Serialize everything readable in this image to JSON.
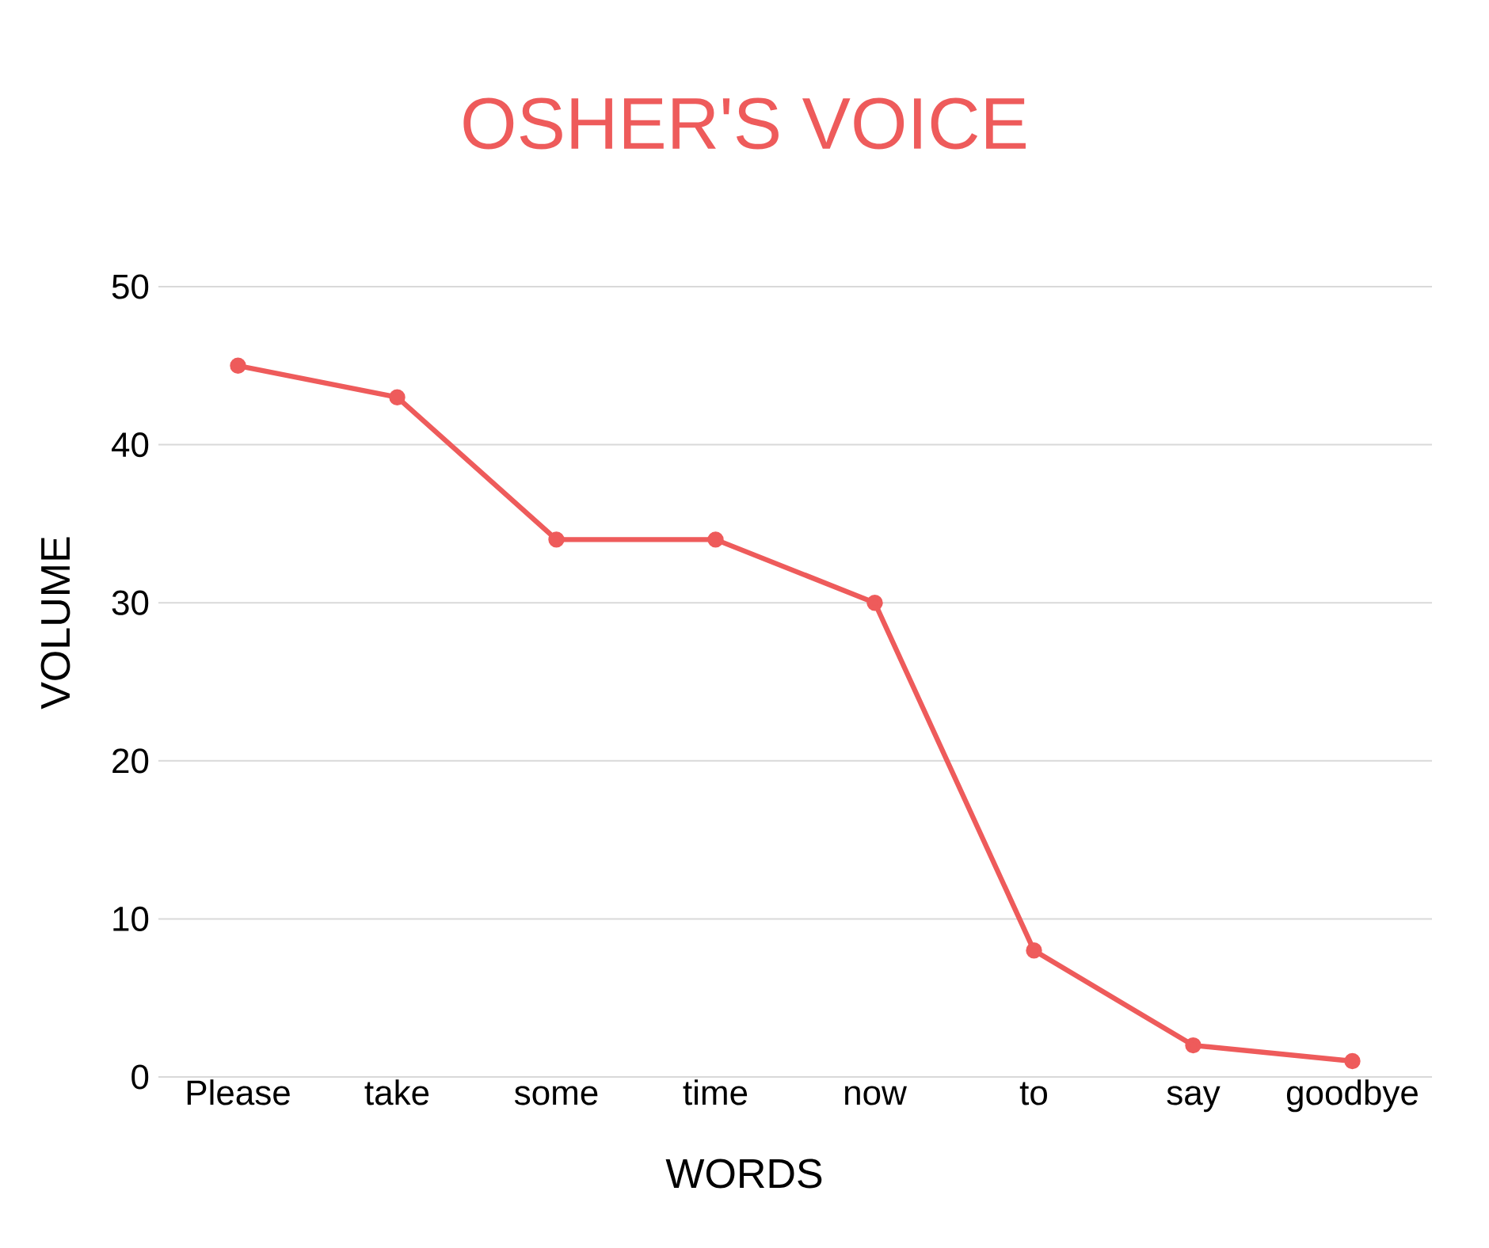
{
  "chart_data": {
    "type": "line",
    "title": "OSHER'S VOICE",
    "xlabel": "WORDS",
    "ylabel": "VOLUME",
    "categories": [
      "Please",
      "take",
      "some",
      "time",
      "now",
      "to",
      "say",
      "goodbye"
    ],
    "series": [
      {
        "color": "#ee5b5b",
        "values": [
          45,
          43,
          34,
          34,
          30,
          8,
          2,
          1
        ]
      }
    ],
    "ylim": [
      0,
      50
    ],
    "yticks": [
      0,
      10,
      20,
      30,
      40,
      50
    ],
    "grid": "y",
    "marker": "circle",
    "line_style": "solid"
  }
}
